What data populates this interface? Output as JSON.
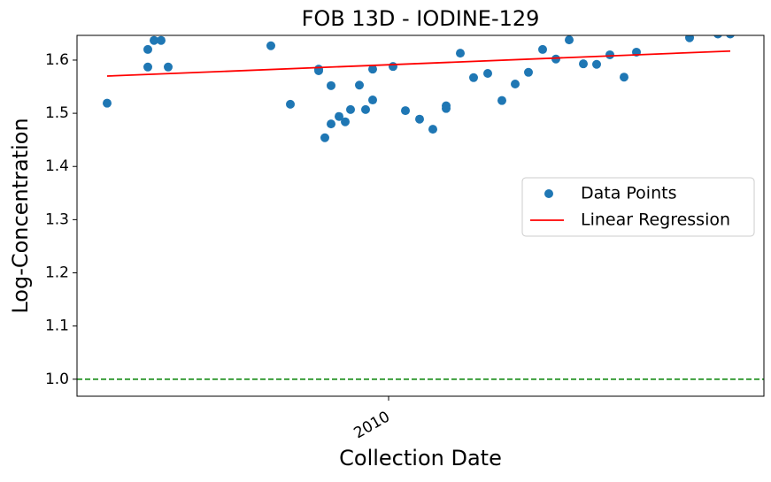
{
  "chart_data": {
    "type": "scatter",
    "title": "FOB 13D - IODINE-129",
    "xlabel": "Collection Date",
    "ylabel": "Log-Concentration",
    "xlim": [
      2009.12,
      2011.06
    ],
    "xticks": [
      2010
    ],
    "ylim": [
      0.968,
      1.6465
    ],
    "yticks": [
      1.0,
      1.1,
      1.2,
      1.3,
      1.4,
      1.5,
      1.6
    ],
    "legend": "center right",
    "series": [
      {
        "name": "Data Points",
        "type": "scatter",
        "color": "#1f77b4",
        "x": [
          2009.205,
          2009.32,
          2009.32,
          2009.3375,
          2009.3575,
          2009.3775,
          2009.6675,
          2009.7225,
          2009.8025,
          2009.8025,
          2009.82,
          2009.8375,
          2009.8375,
          2009.86,
          2009.8775,
          2009.8925,
          2009.9175,
          2009.935,
          2009.955,
          2009.955,
          2010.0125,
          2010.0475,
          2010.0875,
          2010.125,
          2010.1625,
          2010.1625,
          2010.2025,
          2010.24,
          2010.28,
          2010.32,
          2010.3575,
          2010.395,
          2010.435,
          2010.4725,
          2010.51,
          2010.55,
          2010.5875,
          2010.625,
          2010.665,
          2010.7,
          2010.85,
          2010.93,
          2010.965
        ],
        "values": [
          1.519,
          1.62,
          1.587,
          1.637,
          1.637,
          1.587,
          1.627,
          1.517,
          1.583,
          1.58,
          1.454,
          1.552,
          1.48,
          1.494,
          1.484,
          1.507,
          1.553,
          1.507,
          1.583,
          1.525,
          1.588,
          1.505,
          1.489,
          1.47,
          1.514,
          1.509,
          1.613,
          1.567,
          1.575,
          1.524,
          1.555,
          1.577,
          1.62,
          1.602,
          1.638,
          1.593,
          1.592,
          1.61,
          1.568,
          1.615,
          1.642,
          1.649,
          1.649
        ]
      },
      {
        "name": "Linear Regression",
        "type": "line",
        "color": "#ff0000",
        "x": [
          2009.205,
          2010.965
        ],
        "values": [
          1.57,
          1.617
        ]
      }
    ],
    "hline": {
      "value": 1.0,
      "color": "#008000",
      "style": "dashed"
    }
  }
}
